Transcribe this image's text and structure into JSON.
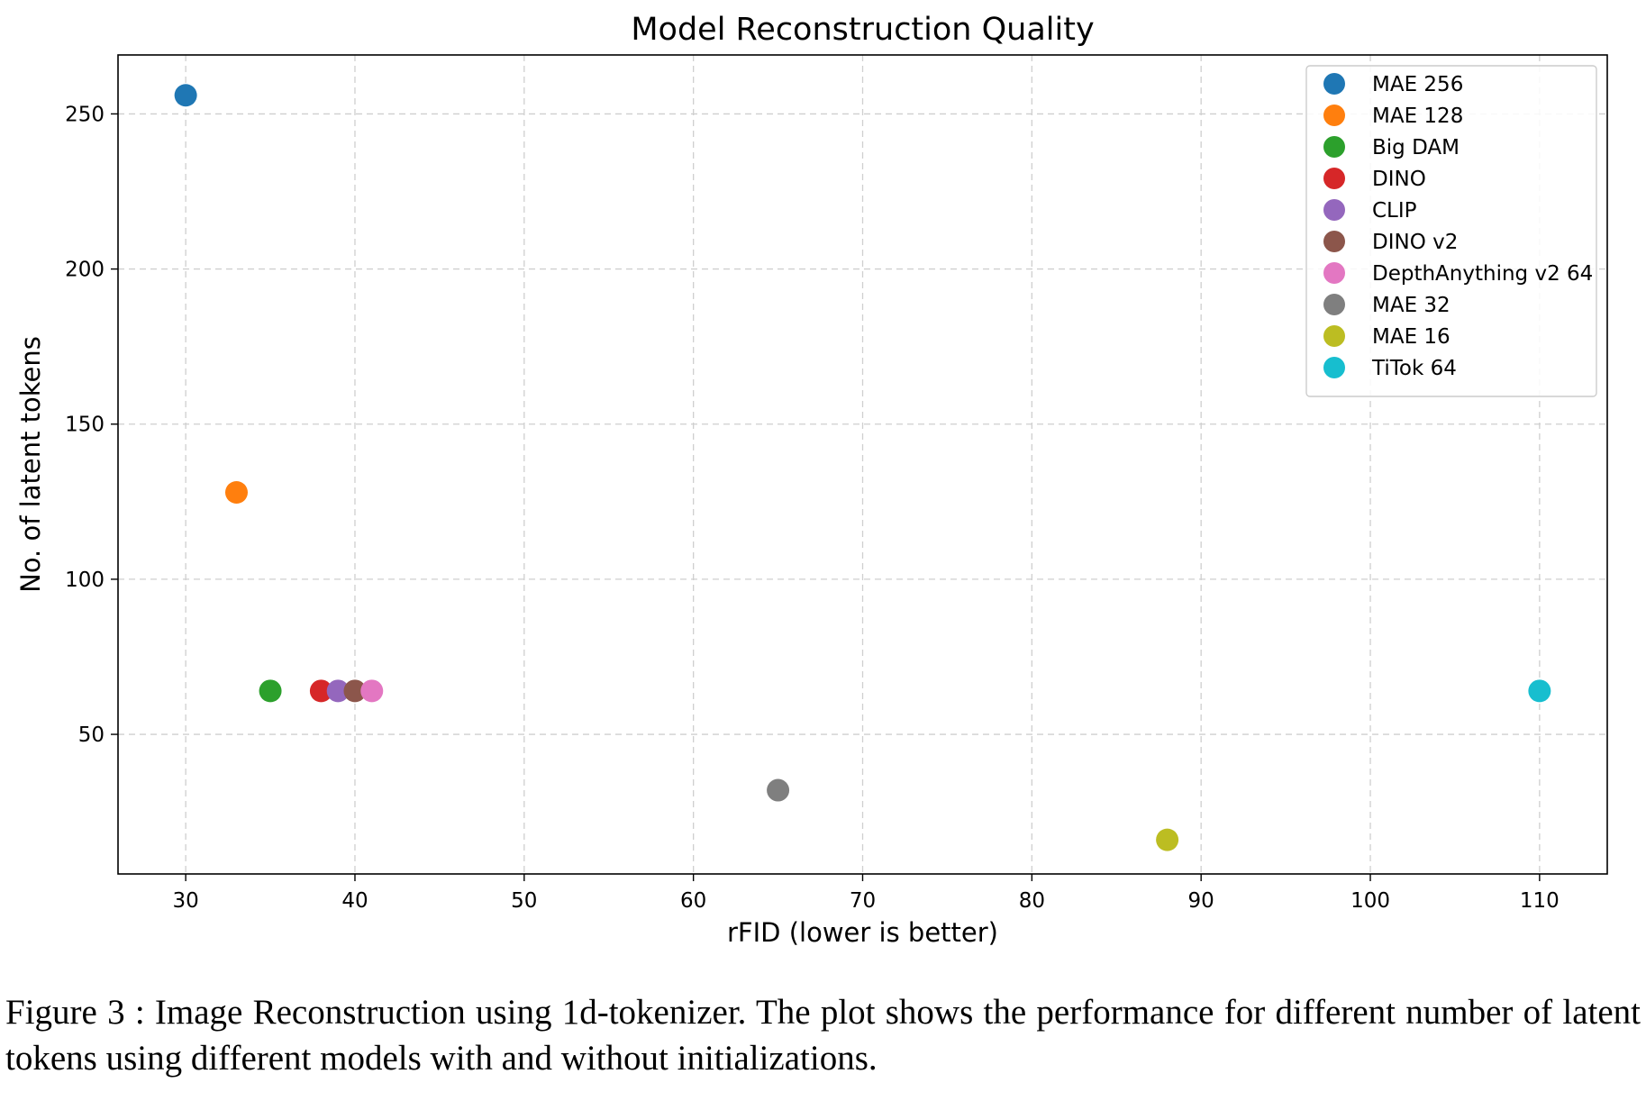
{
  "chart_data": {
    "type": "scatter",
    "title": "Model Reconstruction Quality",
    "xlabel": "rFID (lower is better)",
    "ylabel": "No. of latent tokens",
    "xlim": [
      26,
      114
    ],
    "ylim": [
      5,
      269
    ],
    "xticks": [
      30,
      40,
      50,
      60,
      70,
      80,
      90,
      100,
      110
    ],
    "yticks": [
      50,
      100,
      150,
      200,
      250
    ],
    "grid": true,
    "legend_position": "top-right",
    "series": [
      {
        "name": "MAE 256",
        "color": "#1f77b4",
        "x": 30,
        "y": 256
      },
      {
        "name": "MAE 128",
        "color": "#ff7f0e",
        "x": 33,
        "y": 128
      },
      {
        "name": "Big DAM",
        "color": "#2ca02c",
        "x": 35,
        "y": 64
      },
      {
        "name": "DINO",
        "color": "#d62728",
        "x": 38,
        "y": 64
      },
      {
        "name": "CLIP",
        "color": "#9467bd",
        "x": 39,
        "y": 64
      },
      {
        "name": "DINO v2",
        "color": "#8c564b",
        "x": 40,
        "y": 64
      },
      {
        "name": "DepthAnything v2 64",
        "color": "#e377c2",
        "x": 41,
        "y": 64
      },
      {
        "name": "MAE 32",
        "color": "#7f7f7f",
        "x": 65,
        "y": 32
      },
      {
        "name": "MAE 16",
        "color": "#bcbd22",
        "x": 88,
        "y": 16
      },
      {
        "name": "TiTok 64",
        "color": "#17becf",
        "x": 110,
        "y": 64
      }
    ]
  },
  "caption": "Figure 3 : Image Reconstruction using 1d-tokenizer. The plot shows the performance for different number of latent tokens using different models with and without initializations."
}
